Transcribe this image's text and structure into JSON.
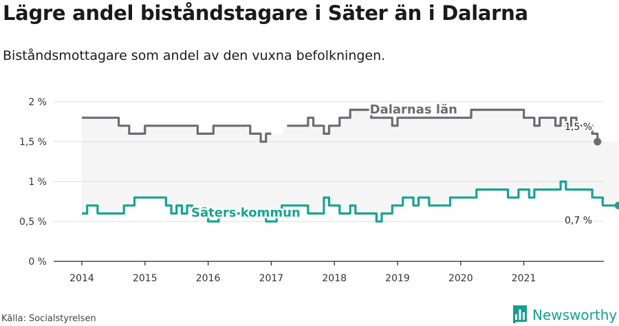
{
  "title": "Lägre andel biståndstagare i Säter än i Dalarna",
  "subtitle": "Biståndsmottagare som andel av den vuxna befolkningen.",
  "source": "Källa: Socialstyrelsen",
  "brand": "Newsworthy",
  "colors": {
    "dalarna": "#6b6b70",
    "sater": "#17a392",
    "band": "#f5f5f5",
    "grid": "#dddddd",
    "brand": "#159e8e"
  },
  "icons": {
    "logo": "bar-chart-logo-icon"
  },
  "chart_data": {
    "type": "line",
    "x_start": "2014-01",
    "x_step": "month",
    "x_ticks": [
      "2014",
      "2015",
      "2016",
      "2017",
      "2018",
      "2019",
      "2020",
      "2021"
    ],
    "y_ticks": [
      "0 %",
      "0,5 %",
      "1 %",
      "1,5 %",
      "2 %"
    ],
    "ylim": [
      0,
      2
    ],
    "grid": true,
    "series": [
      {
        "name": "Dalarnas län",
        "end_label": "1,5 %",
        "values": [
          1.8,
          1.8,
          1.8,
          1.8,
          1.8,
          1.8,
          1.8,
          1.7,
          1.7,
          1.6,
          1.6,
          1.6,
          1.7,
          1.7,
          1.7,
          1.7,
          1.7,
          1.7,
          1.7,
          1.7,
          1.7,
          1.7,
          1.6,
          1.6,
          1.6,
          1.7,
          1.7,
          1.7,
          1.7,
          1.7,
          1.7,
          1.7,
          1.6,
          1.6,
          1.5,
          1.6,
          1.6,
          null,
          null,
          1.7,
          1.7,
          1.7,
          1.7,
          1.8,
          1.7,
          1.7,
          1.6,
          1.7,
          1.7,
          1.8,
          1.8,
          1.9,
          1.9,
          1.9,
          1.9,
          1.8,
          1.8,
          1.8,
          1.8,
          1.7,
          1.8,
          1.8,
          1.8,
          1.8,
          1.8,
          1.8,
          1.8,
          1.8,
          1.8,
          1.8,
          1.8,
          1.8,
          1.8,
          1.8,
          1.9,
          1.9,
          1.9,
          1.9,
          1.9,
          1.9,
          1.9,
          1.9,
          1.9,
          1.9,
          1.8,
          1.8,
          1.7,
          1.8,
          1.8,
          1.8,
          1.7,
          1.8,
          1.7,
          1.8,
          1.7,
          1.7,
          1.7,
          1.6,
          1.5
        ]
      },
      {
        "name": "Säters kommun",
        "end_label": "0,7 %",
        "values": [
          0.6,
          0.7,
          0.7,
          0.6,
          0.6,
          0.6,
          0.6,
          0.6,
          0.7,
          0.7,
          0.8,
          0.8,
          0.8,
          0.8,
          0.8,
          0.8,
          0.7,
          0.6,
          0.7,
          0.6,
          0.7,
          0.6,
          0.6,
          0.6,
          0.5,
          0.5,
          0.6,
          0.6,
          0.6,
          0.6,
          0.6,
          0.6,
          0.6,
          0.6,
          0.6,
          0.5,
          0.5,
          0.6,
          0.7,
          0.7,
          0.7,
          0.7,
          0.7,
          0.6,
          0.6,
          0.6,
          0.8,
          0.7,
          0.7,
          0.6,
          0.6,
          0.7,
          0.6,
          0.6,
          0.6,
          0.6,
          0.5,
          0.6,
          0.6,
          0.7,
          0.7,
          0.8,
          0.8,
          0.7,
          0.8,
          0.8,
          0.7,
          0.7,
          0.7,
          0.7,
          0.8,
          0.8,
          0.8,
          0.8,
          0.8,
          0.9,
          0.9,
          0.9,
          0.9,
          0.9,
          0.9,
          0.8,
          0.8,
          0.9,
          0.9,
          0.8,
          0.9,
          0.9,
          0.9,
          0.9,
          0.9,
          1.0,
          0.9,
          0.9,
          0.9,
          0.9,
          0.9,
          0.8,
          0.8,
          0.7,
          0.7,
          0.7,
          0.7
        ]
      }
    ]
  }
}
